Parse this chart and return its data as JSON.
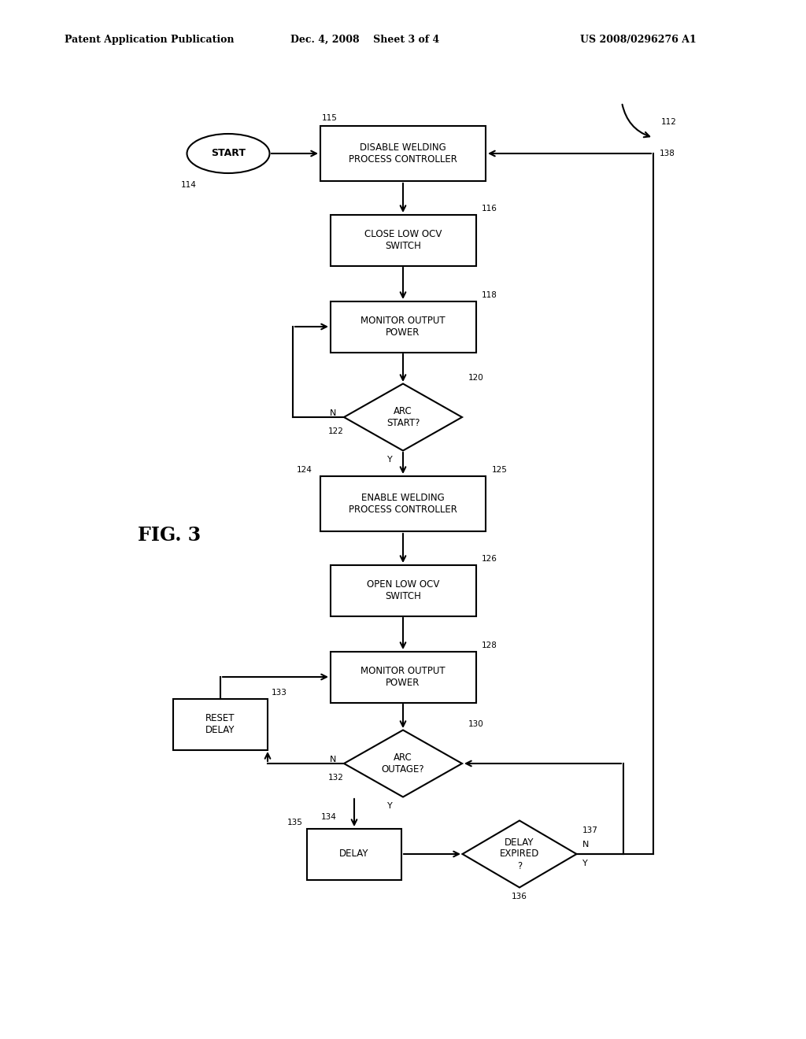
{
  "title_left": "Patent Application Publication",
  "title_center": "Dec. 4, 2008    Sheet 3 of 4",
  "title_right": "US 2008/0296276 A1",
  "fig_label": "FIG. 3",
  "background_color": "#ffffff",
  "line_color": "#000000",
  "text_color": "#000000"
}
